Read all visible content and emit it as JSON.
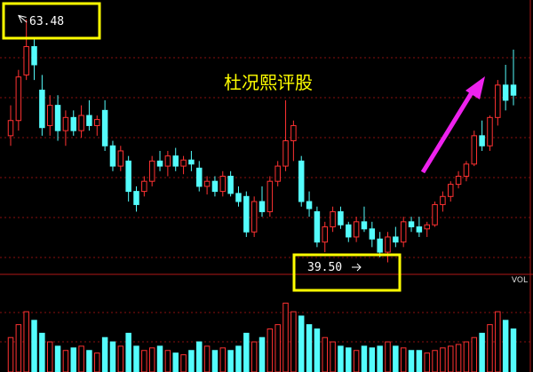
{
  "chart_data": {
    "type": "candlestick",
    "title": "杜况熙评股",
    "high_label": "63.48",
    "low_label": "39.50",
    "volume_label": "VOL",
    "up_color": "#ff3232",
    "down_color": "#54fcfc",
    "ylim": [
      38.4,
      65.4
    ],
    "volume_ylim": [
      0,
      100
    ],
    "ohlc": [
      [
        52.0,
        55.0,
        51.0,
        53.5
      ],
      [
        53.5,
        58.5,
        52.5,
        57.8
      ],
      [
        58.0,
        63.48,
        57.5,
        60.8
      ],
      [
        60.8,
        61.5,
        57.5,
        59.0
      ],
      [
        56.5,
        58.0,
        52.0,
        52.8
      ],
      [
        53.0,
        56.0,
        52.0,
        55.0
      ],
      [
        55.0,
        56.0,
        51.5,
        52.5
      ],
      [
        52.5,
        54.5,
        51.0,
        53.8
      ],
      [
        53.8,
        54.5,
        52.0,
        52.5
      ],
      [
        52.5,
        55.0,
        51.8,
        54.0
      ],
      [
        54.0,
        55.5,
        52.5,
        53.0
      ],
      [
        53.0,
        54.0,
        52.0,
        53.6
      ],
      [
        54.5,
        55.5,
        50.5,
        51.0
      ],
      [
        51.0,
        51.5,
        48.5,
        49.0
      ],
      [
        49.0,
        51.0,
        48.5,
        50.5
      ],
      [
        49.5,
        50.0,
        45.5,
        46.5
      ],
      [
        46.5,
        47.0,
        44.5,
        45.2
      ],
      [
        46.5,
        48.0,
        46.0,
        47.5
      ],
      [
        47.5,
        50.0,
        47.0,
        49.5
      ],
      [
        49.5,
        50.5,
        48.5,
        49.0
      ],
      [
        49.0,
        50.5,
        48.0,
        50.0
      ],
      [
        50.0,
        50.8,
        48.5,
        49.0
      ],
      [
        49.0,
        50.0,
        48.2,
        49.6
      ],
      [
        49.6,
        50.5,
        48.5,
        49.2
      ],
      [
        48.8,
        49.5,
        46.5,
        47.0
      ],
      [
        47.0,
        48.0,
        46.2,
        47.5
      ],
      [
        47.5,
        48.0,
        46.0,
        46.5
      ],
      [
        46.5,
        48.5,
        46.0,
        48.0
      ],
      [
        48.0,
        48.5,
        46.0,
        46.3
      ],
      [
        46.3,
        47.0,
        45.0,
        45.5
      ],
      [
        46.0,
        46.5,
        42.0,
        42.5
      ],
      [
        42.5,
        46.0,
        42.0,
        45.5
      ],
      [
        45.5,
        47.0,
        44.0,
        44.5
      ],
      [
        44.5,
        48.0,
        44.0,
        47.5
      ],
      [
        47.5,
        49.5,
        47.0,
        49.0
      ],
      [
        49.0,
        55.5,
        48.5,
        51.5
      ],
      [
        51.5,
        53.5,
        49.5,
        53.0
      ],
      [
        49.5,
        50.0,
        45.0,
        45.5
      ],
      [
        45.5,
        46.5,
        44.0,
        44.8
      ],
      [
        44.5,
        45.0,
        41.0,
        41.5
      ],
      [
        41.5,
        43.5,
        40.5,
        43.0
      ],
      [
        43.0,
        45.0,
        42.5,
        44.5
      ],
      [
        44.5,
        45.0,
        42.8,
        43.2
      ],
      [
        43.2,
        43.5,
        41.5,
        42.0
      ],
      [
        42.0,
        44.0,
        41.5,
        43.5
      ],
      [
        43.5,
        45.0,
        42.5,
        42.8
      ],
      [
        42.8,
        43.5,
        41.0,
        41.8
      ],
      [
        41.8,
        42.5,
        40.0,
        40.5
      ],
      [
        40.5,
        42.5,
        39.5,
        42.0
      ],
      [
        42.0,
        43.0,
        41.0,
        41.5
      ],
      [
        41.5,
        44.0,
        41.0,
        43.5
      ],
      [
        43.5,
        44.0,
        42.5,
        43.0
      ],
      [
        43.0,
        44.0,
        42.0,
        42.5
      ],
      [
        42.8,
        43.5,
        42.0,
        43.2
      ],
      [
        43.2,
        45.5,
        43.0,
        45.2
      ],
      [
        45.2,
        46.5,
        44.5,
        46.0
      ],
      [
        46.0,
        47.5,
        45.5,
        47.2
      ],
      [
        47.2,
        48.5,
        46.8,
        48.0
      ],
      [
        48.0,
        49.5,
        47.5,
        49.2
      ],
      [
        49.2,
        52.5,
        49.0,
        52.0
      ],
      [
        52.0,
        53.5,
        50.5,
        51.0
      ],
      [
        51.0,
        54.0,
        50.5,
        53.8
      ],
      [
        53.8,
        57.5,
        53.0,
        57.0
      ],
      [
        57.0,
        59.0,
        54.5,
        55.5
      ],
      [
        57.0,
        60.5,
        55.0,
        56.0
      ]
    ],
    "volume": [
      40,
      55,
      70,
      60,
      45,
      35,
      30,
      25,
      28,
      30,
      25,
      22,
      40,
      35,
      30,
      45,
      30,
      25,
      28,
      30,
      25,
      22,
      20,
      25,
      35,
      30,
      25,
      28,
      25,
      30,
      45,
      35,
      40,
      50,
      55,
      80,
      70,
      65,
      55,
      50,
      40,
      35,
      30,
      28,
      25,
      30,
      28,
      30,
      35,
      30,
      28,
      25,
      25,
      22,
      25,
      28,
      30,
      32,
      35,
      40,
      45,
      55,
      70,
      60,
      50
    ]
  }
}
